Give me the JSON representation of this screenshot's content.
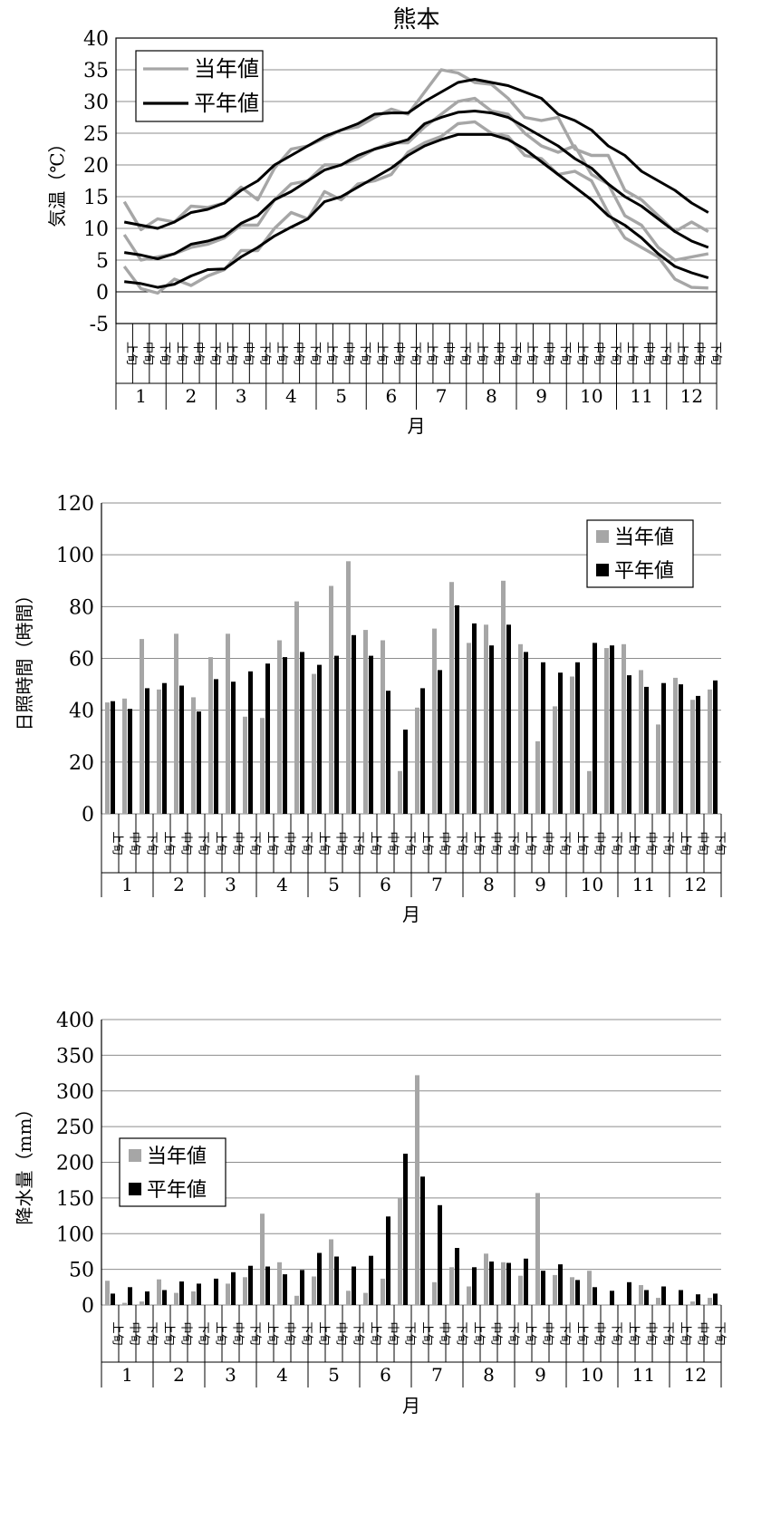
{
  "chart_data": [
    {
      "type": "line",
      "title": "熊本",
      "ylabel": "気温（℃）",
      "xlabel": "月",
      "ylim": [
        -5,
        40
      ],
      "yticks": [
        -5,
        0,
        5,
        10,
        15,
        20,
        25,
        30,
        35,
        40
      ],
      "grid": true,
      "legend": "top-left",
      "months": [
        "1",
        "2",
        "3",
        "4",
        "5",
        "6",
        "7",
        "8",
        "9",
        "10",
        "11",
        "12"
      ],
      "decades": [
        "上旬",
        "中旬",
        "下旬"
      ],
      "legend_labels": [
        "当年値",
        "平年値"
      ],
      "series": [
        {
          "role": "current",
          "group": "max",
          "color": "#a6a6a6",
          "values": [
            14.2,
            9.8,
            11.5,
            11.0,
            13.5,
            13.3,
            14.0,
            16.5,
            14.5,
            19.5,
            22.5,
            23.0,
            24.2,
            25.5,
            26.0,
            27.5,
            28.8,
            28.0,
            31.5,
            35.0,
            34.5,
            33.0,
            32.7,
            30.5,
            27.5,
            27.0,
            27.5,
            22.5,
            21.5,
            21.5,
            16.0,
            14.5,
            12.0,
            9.5,
            11.0,
            9.5
          ]
        },
        {
          "role": "current",
          "group": "mean",
          "color": "#a6a6a6",
          "values": [
            9.0,
            5.0,
            5.5,
            6.0,
            7.0,
            7.5,
            8.5,
            10.5,
            10.5,
            14.5,
            17.0,
            17.5,
            20.0,
            20.0,
            21.0,
            22.5,
            23.5,
            23.5,
            26.0,
            28.0,
            30.0,
            30.5,
            28.5,
            28.0,
            25.0,
            23.0,
            22.0,
            23.0,
            18.5,
            17.0,
            12.0,
            10.5,
            7.0,
            5.0,
            5.5,
            6.0
          ]
        },
        {
          "role": "current",
          "group": "min",
          "color": "#a6a6a6",
          "values": [
            4.0,
            0.5,
            -0.2,
            2.0,
            1.0,
            2.5,
            3.5,
            6.5,
            6.5,
            10.0,
            12.5,
            11.5,
            15.8,
            14.5,
            17.0,
            17.5,
            18.5,
            22.0,
            23.5,
            24.5,
            26.5,
            26.8,
            25.0,
            24.5,
            21.5,
            21.0,
            18.5,
            19.0,
            17.5,
            12.5,
            8.5,
            7.0,
            5.5,
            2.0,
            0.7,
            0.6
          ]
        },
        {
          "role": "normal",
          "group": "max",
          "color": "#000000",
          "values": [
            11.0,
            10.5,
            10.0,
            11.0,
            12.5,
            13.0,
            14.0,
            16.0,
            17.5,
            20.0,
            21.5,
            23.0,
            24.5,
            25.5,
            26.5,
            28.0,
            28.2,
            28.2,
            30.0,
            31.5,
            33.0,
            33.5,
            33.0,
            32.5,
            31.5,
            30.5,
            28.0,
            27.0,
            25.5,
            23.0,
            21.5,
            19.0,
            17.5,
            16.0,
            14.0,
            12.5
          ]
        },
        {
          "role": "normal",
          "group": "mean",
          "color": "#000000",
          "values": [
            6.2,
            5.8,
            5.2,
            6.0,
            7.5,
            8.0,
            8.8,
            10.8,
            12.0,
            14.5,
            15.8,
            17.5,
            19.2,
            20.0,
            21.5,
            22.5,
            23.2,
            24.0,
            26.5,
            27.5,
            28.3,
            28.5,
            28.2,
            27.5,
            26.0,
            24.5,
            23.0,
            21.0,
            19.5,
            17.0,
            15.0,
            13.5,
            11.5,
            9.5,
            8.0,
            7.0
          ]
        },
        {
          "role": "normal",
          "group": "min",
          "color": "#000000",
          "values": [
            1.6,
            1.3,
            0.7,
            1.2,
            2.5,
            3.5,
            3.6,
            5.5,
            7.0,
            8.8,
            10.2,
            11.5,
            14.2,
            15.0,
            16.5,
            18.0,
            19.5,
            21.5,
            23.0,
            24.0,
            24.8,
            24.8,
            24.8,
            24.0,
            22.5,
            20.5,
            18.5,
            16.5,
            14.5,
            12.0,
            10.5,
            8.5,
            6.0,
            4.0,
            3.0,
            2.2
          ]
        }
      ]
    },
    {
      "type": "bar",
      "title": "",
      "ylabel": "日照時間（時間）",
      "xlabel": "月",
      "ylim": [
        0,
        120
      ],
      "yticks": [
        0,
        20,
        40,
        60,
        80,
        100,
        120
      ],
      "grid": true,
      "legend": "top-right",
      "months": [
        "1",
        "2",
        "3",
        "4",
        "5",
        "6",
        "7",
        "8",
        "9",
        "10",
        "11",
        "12"
      ],
      "decades": [
        "上旬",
        "中旬",
        "下旬"
      ],
      "series": [
        {
          "name": "当年値",
          "color": "#a6a6a6",
          "values": [
            43.0,
            44.5,
            67.5,
            48.0,
            69.5,
            45.0,
            60.5,
            69.5,
            37.5,
            37.0,
            67.0,
            82.0,
            54.0,
            88.0,
            97.5,
            71.0,
            67.0,
            16.5,
            41.0,
            71.5,
            89.5,
            66.0,
            73.0,
            90.0,
            65.5,
            28.0,
            41.5,
            53.0,
            16.5,
            64.0,
            65.5,
            55.5,
            34.5,
            52.5,
            44.0,
            48.0
          ]
        },
        {
          "name": "平年値",
          "color": "#000000",
          "values": [
            43.5,
            40.5,
            48.5,
            50.5,
            49.5,
            39.5,
            52.0,
            51.0,
            55.0,
            58.0,
            60.5,
            62.5,
            57.5,
            61.0,
            69.0,
            61.0,
            47.5,
            32.5,
            48.5,
            55.5,
            80.5,
            73.5,
            65.0,
            73.0,
            62.5,
            58.5,
            54.5,
            58.5,
            66.0,
            65.0,
            53.5,
            49.0,
            50.5,
            50.0,
            45.5,
            51.5
          ]
        }
      ]
    },
    {
      "type": "bar",
      "title": "",
      "ylabel": "降水量（mm）",
      "xlabel": "月",
      "ylim": [
        0,
        400
      ],
      "yticks": [
        0,
        50,
        100,
        150,
        200,
        250,
        300,
        350,
        400
      ],
      "grid": true,
      "legend": "top-left",
      "months": [
        "1",
        "2",
        "3",
        "4",
        "5",
        "6",
        "7",
        "8",
        "9",
        "10",
        "11",
        "12"
      ],
      "decades": [
        "上旬",
        "中旬",
        "下旬"
      ],
      "series": [
        {
          "name": "当年値",
          "color": "#a6a6a6",
          "values": [
            34,
            3,
            5,
            36,
            17,
            19,
            0,
            30,
            39,
            128,
            60,
            13,
            40,
            92,
            20,
            17,
            37,
            150,
            322,
            32,
            53,
            26,
            72,
            60,
            41,
            157,
            42,
            39,
            48,
            0,
            0,
            28,
            10,
            0,
            5,
            10
          ]
        },
        {
          "name": "平年値",
          "color": "#000000",
          "values": [
            16,
            25,
            19,
            21,
            33,
            30,
            37,
            46,
            55,
            54,
            43,
            49,
            73,
            68,
            54,
            69,
            124,
            212,
            180,
            140,
            80,
            53,
            61,
            59,
            65,
            48,
            57,
            35,
            25,
            20,
            32,
            21,
            26,
            21,
            15,
            16
          ]
        }
      ]
    }
  ]
}
